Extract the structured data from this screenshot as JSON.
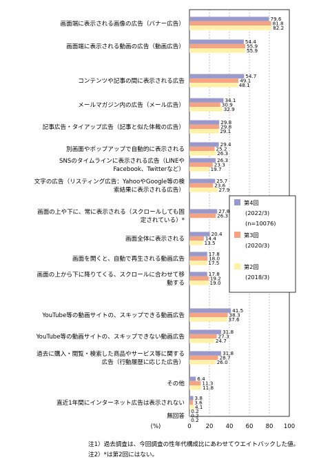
{
  "chart_data": {
    "type": "bar",
    "orientation": "horizontal",
    "xlabel": "(%)",
    "xlim": [
      0,
      100
    ],
    "xticks": [
      "0",
      "20",
      "40",
      "60",
      "80",
      "100"
    ],
    "grid": "dashed vertical",
    "series": [
      {
        "name": "第4回",
        "note1": "(2022/3)",
        "note2": "(n=10076)",
        "color": "#9999cc"
      },
      {
        "name": "第3回",
        "note1": "(2020/3)",
        "color": "#f4a383"
      },
      {
        "name": "第2回",
        "note1": "(2018/3)",
        "color": "#fff2a8"
      }
    ],
    "legend_placement": "right",
    "categories": [
      {
        "lines": [
          "画面端に表示される画像の広告（バナー広告）"
        ],
        "values": [
          79.6,
          81.8,
          82.2
        ],
        "labels": [
          "79.6",
          "81.8",
          "82.2"
        ]
      },
      {
        "lines": [
          "画面端に表示される動画の広告（動画広告）"
        ],
        "values": [
          54.4,
          55.9,
          55.9
        ],
        "labels": [
          "54.4",
          "55.9",
          "55.9"
        ]
      },
      {
        "lines": [
          "コンテンツや記事の間に表示される広告"
        ],
        "values": [
          54.7,
          49.1,
          48.1
        ],
        "labels": [
          "54.7",
          "49.1",
          "48.1"
        ]
      },
      {
        "lines": [
          "メールマガジン内の広告（メール広告）"
        ],
        "values": [
          34.1,
          30.9,
          32.9
        ],
        "labels": [
          "34.1",
          "30.9",
          "32.9"
        ]
      },
      {
        "lines": [
          "記事広告・タイアップ広告（記事と似た体裁の広告）"
        ],
        "values": [
          29.8,
          29.8,
          29.1
        ],
        "labels": [
          "29.8",
          "29.8",
          "29.1"
        ]
      },
      {
        "lines": [
          "別画面やポップアップで自動的に表示される"
        ],
        "values": [
          29.4,
          25.2,
          26.3
        ],
        "labels": [
          "29.4",
          "25.2",
          "26.3"
        ]
      },
      {
        "lines": [
          "SNSのタイムラインに表示される広告（LINEや",
          "Facebook、Twitterなど）"
        ],
        "values": [
          26.3,
          23.3,
          19.7
        ],
        "labels": [
          "26.3",
          "23.3",
          "19.7"
        ]
      },
      {
        "lines": [
          "文字の広告（リスティング広告：YahooやGoogle等の検",
          "索結果に表示される広告）"
        ],
        "values": [
          25.7,
          23.6,
          27.9
        ],
        "labels": [
          "25.7",
          "23.6",
          "27.9"
        ]
      },
      {
        "lines": [
          "画面の上や下に、常に表示される（スクロールしても固",
          "定されている）*"
        ],
        "values": [
          27.8,
          26.3,
          null
        ],
        "labels": [
          "27.8",
          "26.3",
          ""
        ]
      },
      {
        "lines": [
          "画面全体に表示される"
        ],
        "values": [
          20.4,
          14.4,
          13.5
        ],
        "labels": [
          "20.4",
          "14.4",
          "13.5"
        ]
      },
      {
        "lines": [
          "画面を開くと、自動で再生される動画広告"
        ],
        "values": [
          17.8,
          18.0,
          17.5
        ],
        "labels": [
          "17.8",
          "18.0",
          "17.5"
        ]
      },
      {
        "lines": [
          "画面の上から下に降りてくる、スクロールに合わせて移",
          "動する"
        ],
        "values": [
          17.8,
          19.2,
          19.0
        ],
        "labels": [
          "17.8",
          "19.2",
          "19.0"
        ]
      },
      {
        "lines": [
          "YouTube等の動画サイトの、スキップできる動画広告"
        ],
        "values": [
          41.5,
          38.3,
          37.6
        ],
        "labels": [
          "41.5",
          "38.3",
          "37.6"
        ]
      },
      {
        "lines": [
          "YouTube等の動画サイトの、スキップできない動画広告"
        ],
        "values": [
          31.8,
          27.3,
          24.7
        ],
        "labels": [
          "31.8",
          "27.3",
          "24.7"
        ]
      },
      {
        "lines": [
          "過去に購入・閲覧・検索した商品やサービス等に関する",
          "広告（行動履歴に応じた広告）"
        ],
        "values": [
          31.8,
          28.7,
          26.0
        ],
        "labels": [
          "31.8",
          "28.7",
          "26.0"
        ]
      },
      {
        "lines": [
          "その他"
        ],
        "values": [
          6.4,
          11.3,
          11.8
        ],
        "labels": [
          "6.4",
          "11.3",
          "11.8"
        ]
      },
      {
        "lines": [
          "直近1年間にインターネット広告は表示されない"
        ],
        "values": [
          3.8,
          3.6,
          4.1
        ],
        "labels": [
          "3.8",
          "3.6",
          "4.1"
        ]
      },
      {
        "lines": [
          "無回答"
        ],
        "values": [
          0.2,
          0.2,
          0.2
        ],
        "labels": [
          "0.2",
          "0.2",
          "0.2"
        ]
      }
    ]
  },
  "notes": [
    "注1）過去調査は、今回調査の性年代構成比にあわせてウエイトバックした値。",
    "注2）*は第2回にはない。"
  ]
}
